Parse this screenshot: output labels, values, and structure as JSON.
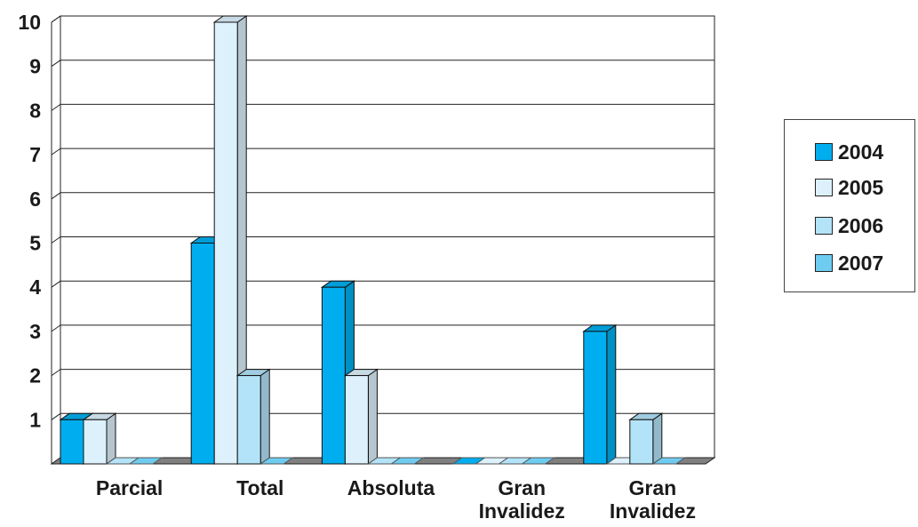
{
  "chart_data": {
    "type": "bar",
    "categories": [
      "Parcial",
      "Total",
      "Absoluta",
      "Gran Invalidez",
      "Gran Invalidez"
    ],
    "series": [
      {
        "name": "2004",
        "values": [
          1,
          5,
          4,
          0,
          3
        ],
        "color": "#00AEEF"
      },
      {
        "name": "2005",
        "values": [
          1,
          10,
          2,
          0,
          0
        ],
        "color": "#DDF1FC"
      },
      {
        "name": "2006",
        "values": [
          0,
          2,
          0,
          0,
          1
        ],
        "color": "#B3E3F8"
      },
      {
        "name": "2007",
        "values": [
          0,
          0,
          0,
          0,
          0
        ],
        "color": "#6FCCF1"
      }
    ],
    "ylim": [
      0,
      10
    ],
    "yticks": [
      "",
      "1",
      "2",
      "3",
      "4",
      "5",
      "6",
      "7",
      "8",
      "9",
      "10"
    ],
    "grid": true,
    "legend_position": "right",
    "floor_color": "#808080",
    "title": "",
    "xlabel": "",
    "ylabel": ""
  },
  "legend": {
    "items": [
      {
        "label": "2004",
        "color": "#00AEEF"
      },
      {
        "label": "2005",
        "color": "#DDF1FC"
      },
      {
        "label": "2006",
        "color": "#B3E3F8"
      },
      {
        "label": "2007",
        "color": "#6FCCF1"
      }
    ]
  }
}
